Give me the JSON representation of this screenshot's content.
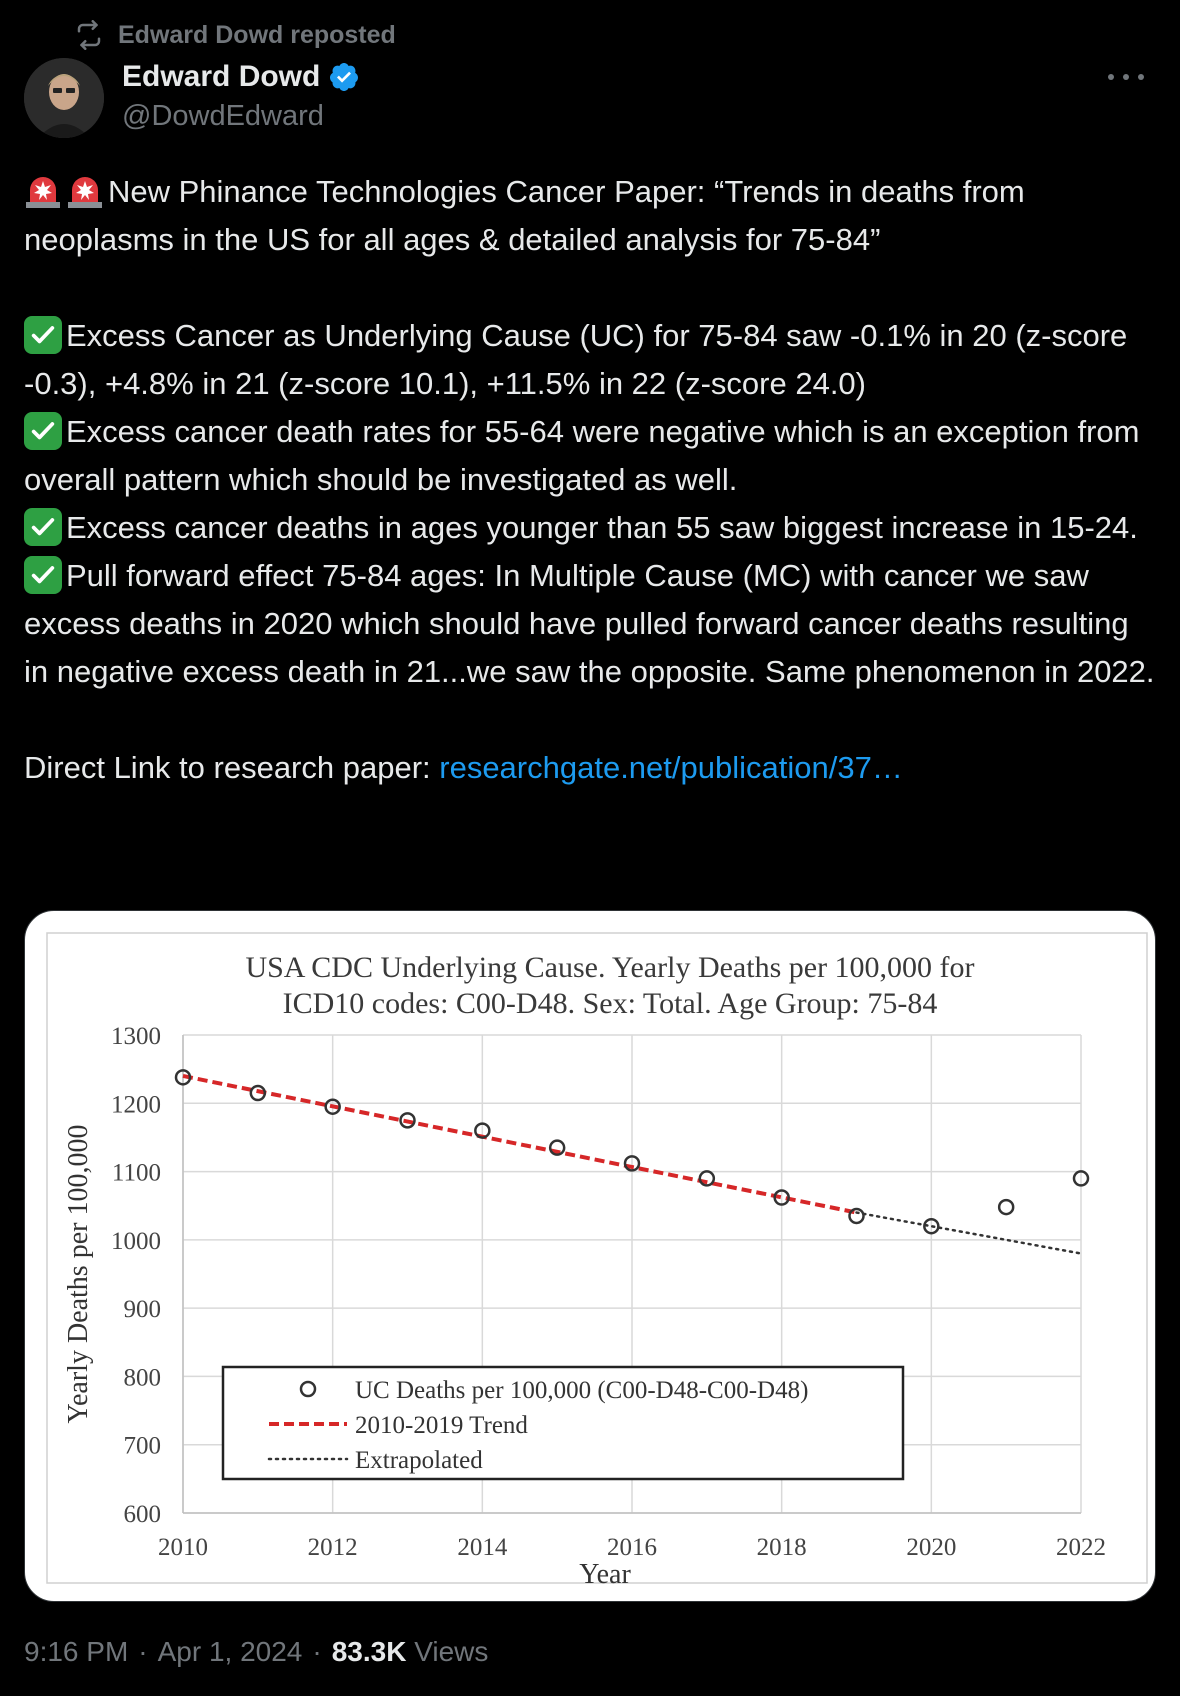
{
  "repost": {
    "text": "Edward Dowd reposted"
  },
  "author": {
    "name": "Edward Dowd",
    "handle": "@DowdEdward"
  },
  "tweet": {
    "intro": "New Phinance Technologies Cancer Paper: “Trends in deaths from neoplasms in the US for all ages & detailed analysis for 75-84”",
    "bullets": [
      "Excess Cancer as Underlying Cause (UC) for 75-84 saw -0.1% in 20 (z-score -0.3), +4.8% in 21 (z-score 10.1), +11.5% in 22 (z-score 24.0)",
      "Excess cancer death rates for 55-64 were negative which is an exception from overall pattern which should be investigated as well.",
      "Excess cancer deaths in ages younger than 55 saw biggest increase in 15-24.",
      "Pull forward effect 75-84 ages: In Multiple Cause (MC) with cancer we saw excess deaths in 2020 which should have pulled forward cancer deaths resulting in negative excess death in 21...we saw the opposite. Same phenomenon in 2022."
    ],
    "link_prefix": "Direct Link to research paper: ",
    "link_text": "researchgate.net/publication/37…"
  },
  "footer": {
    "time": "9:16 PM",
    "sep1": "·",
    "date": "Apr 1, 2024",
    "sep2": "·",
    "views_count": "83.3K",
    "views_label": "Views"
  },
  "icons": {
    "repost": "repost-icon",
    "verified": "verified-badge-icon",
    "more": "more-options-icon",
    "siren": "siren-emoji-icon",
    "check": "check-mark-emoji-icon"
  },
  "colors": {
    "link": "#1d9bf0",
    "verified": "#1d9bf0",
    "trend": "#d62728",
    "check": "#2ea043"
  },
  "chart_data": {
    "type": "scatter",
    "title": "USA CDC Underlying Cause. Yearly Deaths per 100,000 for ICD10 codes: C00-D48. Sex: Total. Age Group: 75-84",
    "title_lines": [
      "USA CDC Underlying Cause. Yearly Deaths per 100,000 for",
      "ICD10 codes: C00-D48. Sex: Total. Age Group: 75-84"
    ],
    "xlabel": "Year",
    "ylabel": "Yearly Deaths per 100,000",
    "xlim": [
      2010,
      2022
    ],
    "ylim": [
      600,
      1300
    ],
    "xticks": [
      2010,
      2012,
      2014,
      2016,
      2018,
      2020,
      2022
    ],
    "yticks": [
      600,
      700,
      800,
      900,
      1000,
      1100,
      1200,
      1300
    ],
    "grid": true,
    "legend_position": "lower-left",
    "series": [
      {
        "name": "UC Deaths per 100,000 (C00-D48-C00-D48)",
        "type": "scatter",
        "x": [
          2010,
          2011,
          2012,
          2013,
          2014,
          2015,
          2016,
          2017,
          2018,
          2019,
          2020,
          2021,
          2022
        ],
        "y": [
          1238,
          1215,
          1195,
          1175,
          1160,
          1135,
          1112,
          1090,
          1062,
          1035,
          1020,
          1048,
          1090
        ]
      },
      {
        "name": "2010-2019 Trend",
        "type": "line",
        "style": "dashed",
        "color": "#d62728",
        "x": [
          2010,
          2019
        ],
        "y": [
          1240,
          1040
        ]
      },
      {
        "name": "Extrapolated",
        "type": "line",
        "style": "dotted",
        "color": "#333333",
        "x": [
          2019,
          2022
        ],
        "y": [
          1040,
          980
        ]
      }
    ]
  }
}
